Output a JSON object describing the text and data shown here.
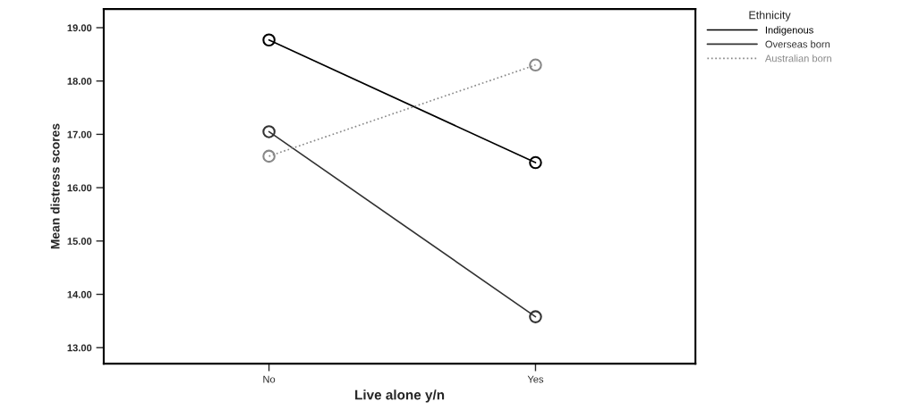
{
  "chart_data": {
    "type": "line",
    "xlabel": "Live alone y/n",
    "ylabel": "Mean distress scores",
    "legend_title": "Ethnicity",
    "categories": [
      "No",
      "Yes"
    ],
    "series": [
      {
        "name": "Indigenous",
        "color": "#000000",
        "values": [
          18.77,
          16.47
        ],
        "line_style": "solid"
      },
      {
        "name": "Overseas born",
        "color": "#333333",
        "values": [
          17.05,
          13.58
        ],
        "line_style": "solid"
      },
      {
        "name": "Australian born",
        "color": "#888888",
        "values": [
          16.59,
          18.3
        ],
        "line_style": "dotted"
      }
    ],
    "ylim": [
      12.7,
      19.35
    ],
    "yticks": [
      {
        "value": 13,
        "label": "13.00"
      },
      {
        "value": 14,
        "label": "14.00"
      },
      {
        "value": 15,
        "label": "15.00"
      },
      {
        "value": 16,
        "label": "16.00"
      },
      {
        "value": 17,
        "label": "17.00"
      },
      {
        "value": 18,
        "label": "18.00"
      },
      {
        "value": 19,
        "label": "19.00"
      }
    ],
    "marker": "circle",
    "legend": "top right",
    "grid": false
  }
}
